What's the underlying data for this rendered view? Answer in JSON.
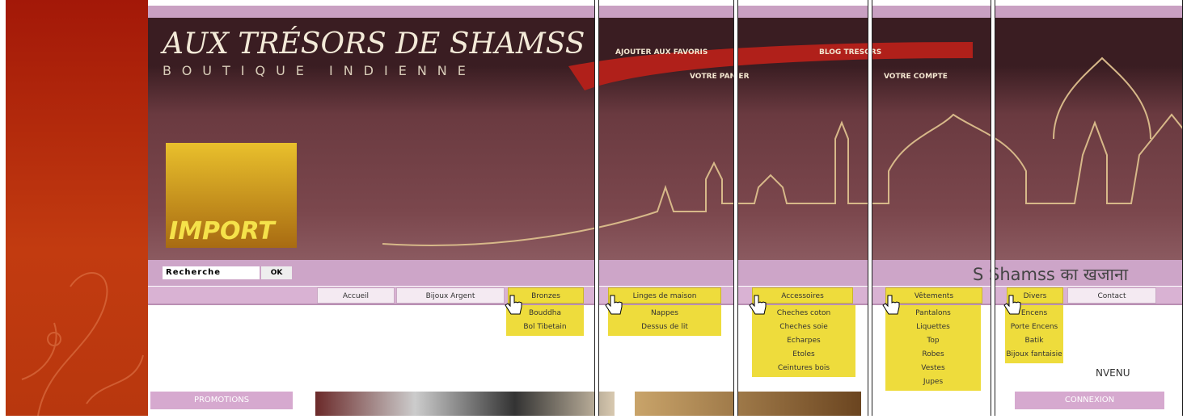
{
  "header": {
    "title": "AUX TRÉSORS DE SHAMSS",
    "subtitle": "BOUTIQUE INDIENNE",
    "links": [
      "AJOUTER AUX FAVORIS",
      "BLOG TRESORS",
      "VOTRE PANIER",
      "VOTRE COMPTE"
    ]
  },
  "banner": {
    "label": "IMPORT"
  },
  "search": {
    "placeholder": "Recherche",
    "button": "OK"
  },
  "tagline": "S Shamss का खजाना",
  "panels": [
    {
      "menu": [
        "Accueil",
        "Bijoux Argent",
        "Bronzes"
      ],
      "dropdown": [
        "Bouddha",
        "Bol Tibetain"
      ]
    },
    {
      "menu": [
        "Linges de maison"
      ],
      "dropdown": [
        "Nappes",
        "Dessus de lit"
      ]
    },
    {
      "menu": [
        "Accessoires"
      ],
      "dropdown": [
        "Cheches coton",
        "Cheches soie",
        "Echarpes",
        "Etoles",
        "Ceintures bois"
      ]
    },
    {
      "menu": [
        "Vêtements"
      ],
      "dropdown": [
        "Pantalons",
        "Liquettes",
        "Top",
        "Robes",
        "Vestes",
        "Jupes"
      ]
    },
    {
      "menu": [
        "Divers",
        "Contact"
      ],
      "dropdown": [
        "Encens",
        "Porte Encens",
        "Batik",
        "Bijoux fantaisie"
      ]
    }
  ],
  "body": {
    "promotions": "PROMOTIONS",
    "welcome": "NVENU",
    "login": "CONNEXION"
  }
}
